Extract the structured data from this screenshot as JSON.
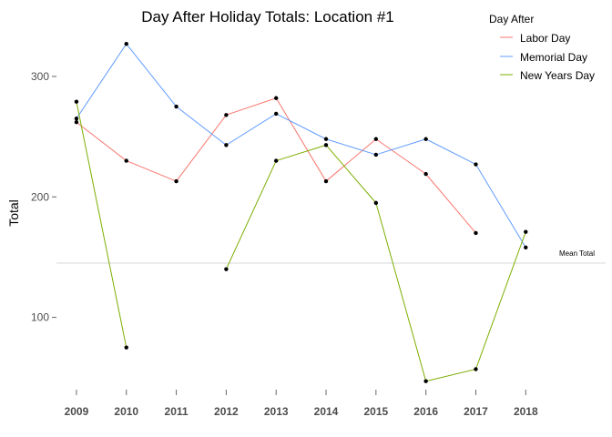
{
  "chart_data": {
    "type": "line",
    "title": "Day After Holiday Totals: Location #1",
    "xlabel": "",
    "ylabel": "Total",
    "x": [
      2009,
      2010,
      2011,
      2012,
      2013,
      2014,
      2015,
      2016,
      2017,
      2018
    ],
    "x_tick_labels": [
      "2009",
      "2010",
      "2011",
      "2012",
      "2013",
      "2014",
      "2015",
      "2016",
      "2017",
      "2018"
    ],
    "y_ticks": [
      100,
      200,
      300
    ],
    "y_tick_labels": [
      "100",
      "200",
      "300"
    ],
    "xlim": [
      2008.6,
      2019.6
    ],
    "ylim": [
      40,
      340
    ],
    "grid": false,
    "legend": {
      "title": "Day After",
      "placement": "top-right"
    },
    "series": [
      {
        "name": "Labor Day",
        "color": "#f8766d",
        "values": [
          262,
          230,
          213,
          268,
          282,
          213,
          248,
          219,
          170,
          null
        ]
      },
      {
        "name": "Memorial Day",
        "color": "#619cff",
        "values": [
          265,
          327,
          275,
          243,
          269,
          248,
          235,
          248,
          227,
          158
        ]
      },
      {
        "name": "New Years Day",
        "color": "#7cae00",
        "values": [
          279,
          75,
          null,
          140,
          230,
          243,
          195,
          47,
          57,
          171
        ]
      }
    ],
    "reference_line": {
      "label": "Mean Total",
      "value": 145,
      "color": "#d9d9d9"
    },
    "point_color": "#000000"
  }
}
